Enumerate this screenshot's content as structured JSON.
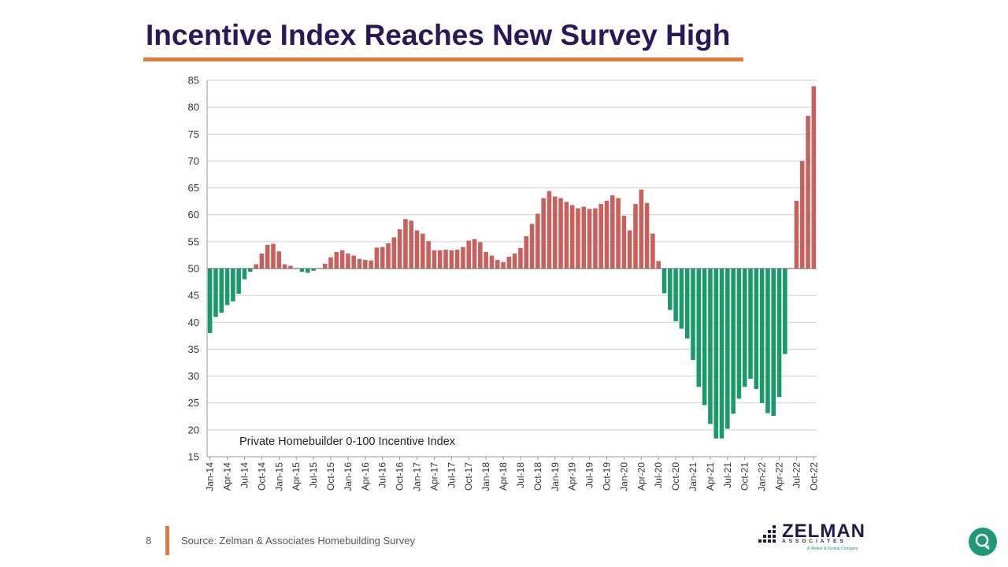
{
  "header": {
    "title": "Incentive Index Reaches New Survey High"
  },
  "footer": {
    "page_number": "8",
    "source": "Source: Zelman & Associates Homebuilding Survey"
  },
  "logo": {
    "name": "ZELMAN",
    "subtitle": "ASSOCIATES",
    "tagline": "A Walker & Dunlop Company"
  },
  "colors": {
    "above": "#c9605c",
    "below": "#1a9a6b",
    "title": "#2b1858",
    "accent": "#e07b3b"
  },
  "chart_data": {
    "type": "bar",
    "annotation": "Private Homebuilder 0-100 Incentive Index",
    "ylim": [
      15,
      85
    ],
    "yticks": [
      15,
      20,
      25,
      30,
      35,
      40,
      45,
      50,
      55,
      60,
      65,
      70,
      75,
      80,
      85
    ],
    "baseline": 50,
    "grid": true,
    "xtick_labels": [
      "Jan-14",
      "Apr-14",
      "Jul-14",
      "Oct-14",
      "Jan-15",
      "Apr-15",
      "Jul-15",
      "Oct-15",
      "Jan-16",
      "Apr-16",
      "Jul-16",
      "Oct-16",
      "Jan-17",
      "Apr-17",
      "Jul-17",
      "Oct-17",
      "Jan-18",
      "Apr-18",
      "Jul-18",
      "Oct-18",
      "Jan-19",
      "Apr-19",
      "Jul-19",
      "Oct-19",
      "Jan-20",
      "Apr-20",
      "Jul-20",
      "Oct-20",
      "Jan-21",
      "Apr-21",
      "Jul-21",
      "Oct-21",
      "Jan-22",
      "Apr-22",
      "Jul-22",
      "Oct-22"
    ],
    "values": [
      38,
      41,
      41.8,
      43.2,
      43.9,
      45.3,
      48,
      49.4,
      50.8,
      52.8,
      54.4,
      54.6,
      53.2,
      50.8,
      50.5,
      50.1,
      49.4,
      49.2,
      49.6,
      50.1,
      50.9,
      52.1,
      53.1,
      53.4,
      52.8,
      52.4,
      51.8,
      51.6,
      51.5,
      53.9,
      54,
      54.7,
      55.8,
      57.3,
      59.2,
      58.9,
      57.1,
      56.5,
      55.1,
      53.4,
      53.4,
      53.5,
      53.4,
      53.5,
      54,
      55.2,
      55.5,
      54.9,
      53.1,
      52.4,
      51.6,
      51.2,
      52.2,
      52.8,
      53.8,
      56,
      58.3,
      60.2,
      63.1,
      64.4,
      63.4,
      63.1,
      62.4,
      61.8,
      61.2,
      61.5,
      61.1,
      61.2,
      62,
      62.6,
      63.6,
      63.1,
      59.8,
      57.1,
      62,
      64.7,
      62.2,
      56.5,
      51.4,
      45.4,
      42.3,
      40.2,
      38.8,
      37,
      33,
      28,
      24.6,
      21.1,
      18.4,
      18.4,
      20.2,
      23,
      25.8,
      28,
      29.5,
      27.6,
      25,
      23.1,
      22.6,
      26.1,
      34.1,
      50.1,
      62.6,
      70,
      78.4,
      83.9
    ]
  }
}
